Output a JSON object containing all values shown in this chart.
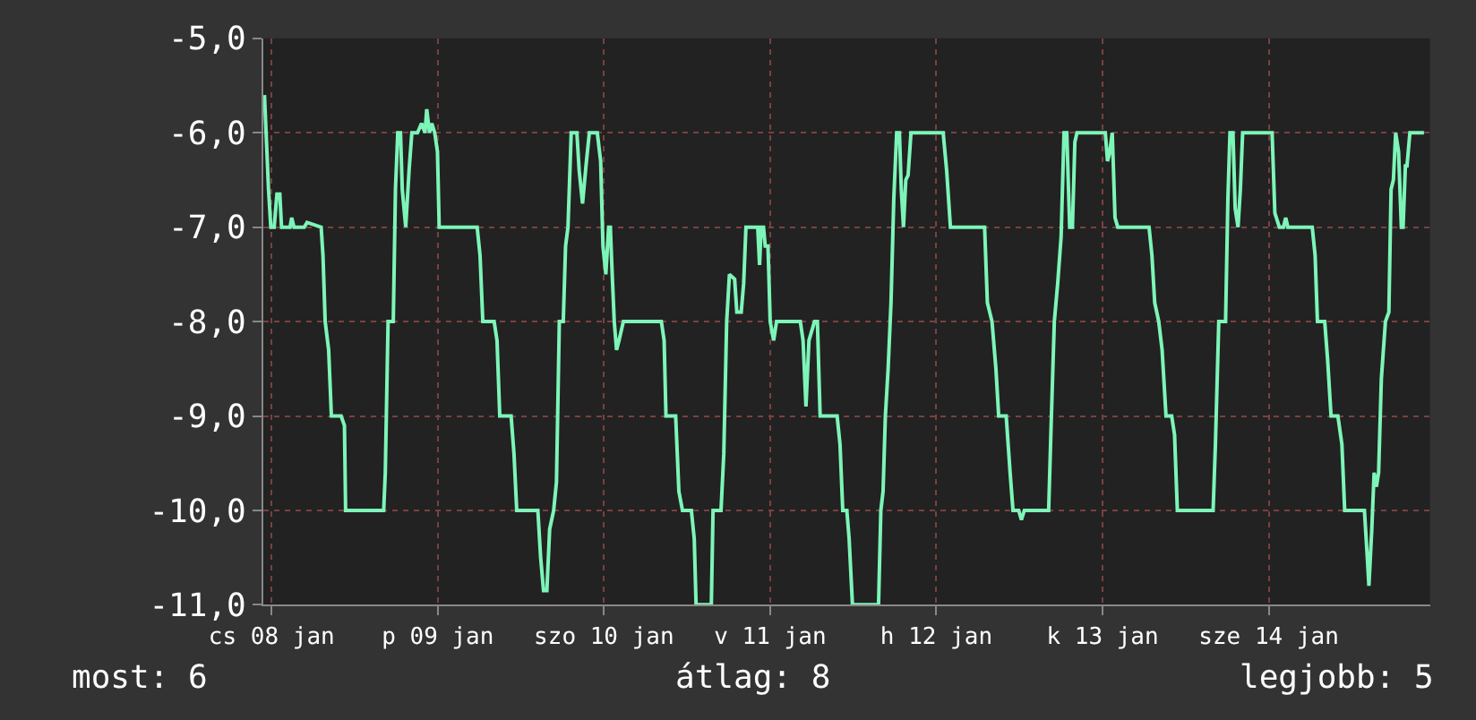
{
  "chart_data": {
    "type": "line",
    "x": [
      "--01-08T10:58",
      "--01-08T11:12",
      "--01-08T11:33",
      "--01-08T11:53",
      "--01-08T12:22",
      "--01-08T12:46",
      "--01-08T13:11",
      "--01-08T13:26",
      "--01-08T14:40",
      "--01-08T14:54",
      "--01-08T15:14",
      "--01-08T16:42",
      "--01-08T17:07",
      "--01-08T19:09",
      "--01-08T19:25",
      "--01-08T19:44",
      "--01-08T20:14",
      "--01-08T20:38",
      "--01-08T22:02",
      "--01-08T22:31",
      "--01-08T22:41",
      "--01-09T04:11",
      "--01-09T04:25",
      "--01-09T04:49",
      "--01-09T05:34",
      "--01-09T05:53",
      "--01-09T06:13",
      "--01-09T06:37",
      "--01-09T06:52",
      "--01-09T07:22",
      "--01-09T07:51",
      "--01-09T08:15",
      "--01-09T09:04",
      "--01-09T09:39",
      "--01-09T10:09",
      "--01-09T10:24",
      "--01-09T10:48",
      "--01-09T11:08",
      "--01-09T11:33",
      "--01-09T11:57",
      "--01-09T12:12",
      "--01-09T17:41",
      "--01-09T18:06",
      "--01-09T18:30",
      "--01-09T20:08",
      "--01-09T20:33",
      "--01-09T20:57",
      "--01-09T22:35",
      "--01-09T23:00",
      "--01-09T23:24",
      "--01-10T02:27",
      "--01-10T02:51",
      "--01-10T03:16",
      "--01-10T03:45",
      "--01-10T04:09",
      "--01-10T04:44",
      "--01-10T05:08",
      "--01-10T05:33",
      "--01-10T06:07",
      "--01-10T06:27",
      "--01-10T06:48",
      "--01-10T07:16",
      "--01-10T08:05",
      "--01-10T08:25",
      "--01-10T08:54",
      "--01-10T09:24",
      "--01-10T09:53",
      "--01-10T11:02",
      "--01-10T11:31",
      "--01-10T11:51",
      "--01-10T12:16",
      "--01-10T12:40",
      "--01-10T12:55",
      "--01-10T13:11",
      "--01-10T13:29",
      "--01-10T13:49",
      "--01-10T14:10",
      "--01-10T14:48",
      "--01-10T20:17",
      "--01-10T20:41",
      "--01-10T20:57",
      "--01-10T22:21",
      "--01-10T22:49",
      "--01-10T23:20",
      "--01-11T00:37",
      "--01-11T01:02",
      "--01-11T01:18",
      "--01-11T03:30",
      "--01-11T03:45",
      "--01-11T04:54",
      "--01-11T05:18",
      "--01-11T05:43",
      "--01-11T06:07",
      "--01-11T06:52",
      "--01-11T07:11",
      "--01-11T07:49",
      "--01-11T08:10",
      "--01-11T08:30",
      "--01-11T10:12",
      "--01-11T10:28",
      "--01-11T10:42",
      "--01-11T11:02",
      "--01-11T11:17",
      "--01-11T11:41",
      "--01-11T12:00",
      "--01-11T12:30",
      "--01-11T12:55",
      "--01-11T16:21",
      "--01-11T16:45",
      "--01-11T17:10",
      "--01-11T17:36",
      "--01-11T18:24",
      "--01-11T18:49",
      "--01-11T19:13",
      "--01-11T21:40",
      "--01-11T22:05",
      "--01-11T22:29",
      "--01-11T23:04",
      "--01-11T23:24",
      "--01-11T23:53",
      "--01-12T03:39",
      "--01-12T03:59",
      "--01-12T04:18",
      "--01-12T04:38",
      "--01-12T05:02",
      "--01-12T05:27",
      "--01-12T05:51",
      "--01-12T06:16",
      "--01-12T06:40",
      "--01-12T06:56",
      "--01-12T07:15",
      "--01-12T07:35",
      "--01-12T07:55",
      "--01-12T08:20",
      "--01-12T12:59",
      "--01-12T13:29",
      "--01-12T14:02",
      "--01-12T18:58",
      "--01-12T19:22",
      "--01-12T20:02",
      "--01-12T20:36",
      "--01-12T21:00",
      "--01-12T22:05",
      "--01-12T22:39",
      "--01-12T23:04",
      "--01-12T23:53",
      "--01-13T00:17",
      "--01-13T00:42",
      "--01-13T04:13",
      "--01-13T04:32",
      "--01-13T05:02",
      "--01-13T05:31",
      "--01-13T06:01",
      "--01-13T06:26",
      "--01-13T06:50",
      "--01-13T07:15",
      "--01-13T07:39",
      "--01-13T08:00",
      "--01-13T08:18",
      "--01-13T12:24",
      "--01-13T12:43",
      "--01-13T13:03",
      "--01-13T13:24",
      "--01-13T13:48",
      "--01-13T14:12",
      "--01-13T18:43",
      "--01-13T19:08",
      "--01-13T19:32",
      "--01-13T20:07",
      "--01-13T20:36",
      "--01-13T21:10",
      "--01-13T21:59",
      "--01-13T22:24",
      "--01-13T22:48",
      "--01-14T03:58",
      "--01-14T04:18",
      "--01-14T04:47",
      "--01-14T05:46",
      "--01-14T06:06",
      "--01-14T06:24",
      "--01-14T06:50",
      "--01-14T07:09",
      "--01-14T07:34",
      "--01-14T07:54",
      "--01-14T08:14",
      "--01-14T12:29",
      "--01-14T12:53",
      "--01-14T13:32",
      "--01-14T14:07",
      "--01-14T14:27",
      "--01-14T14:46",
      "--01-14T18:17",
      "--01-14T18:42",
      "--01-14T19:02",
      "--01-14T20:05",
      "--01-14T20:30",
      "--01-14T21:00",
      "--01-14T21:59",
      "--01-14T22:34",
      "--01-14T22:58",
      "--01-15T01:49",
      "--01-15T02:14",
      "--01-15T02:28",
      "--01-15T02:53",
      "--01-15T03:13",
      "--01-15T03:33",
      "--01-15T03:52",
      "--01-15T04:16",
      "--01-15T04:51",
      "--01-15T05:21",
      "--01-15T05:40",
      "--01-15T06:00",
      "--01-15T06:20",
      "--01-15T06:45",
      "--01-15T07:09",
      "--01-15T07:24",
      "--01-15T07:44",
      "--01-15T07:58",
      "--01-15T08:23",
      "--01-15T10:25"
    ],
    "series": [
      {
        "color": "#7df5b8",
        "values": [
          -5.6,
          -6.0,
          -6.6,
          -7.0,
          -7.0,
          -6.65,
          -6.65,
          -7.0,
          -7.0,
          -6.9,
          -7.0,
          -7.0,
          -6.95,
          -7.0,
          -7.3,
          -8.0,
          -8.3,
          -9.0,
          -9.0,
          -9.1,
          -10.0,
          -10.0,
          -9.6,
          -8.0,
          -8.0,
          -6.6,
          -6.0,
          -6.0,
          -6.6,
          -7.0,
          -6.4,
          -6.0,
          -6.0,
          -5.9,
          -6.0,
          -5.75,
          -6.0,
          -5.9,
          -6.0,
          -6.2,
          -7.0,
          -7.0,
          -7.3,
          -8.0,
          -8.0,
          -8.2,
          -9.0,
          -9.0,
          -9.4,
          -10.0,
          -10.0,
          -10.5,
          -10.85,
          -10.85,
          -10.2,
          -10.0,
          -9.7,
          -8.0,
          -8.0,
          -7.2,
          -7.0,
          -6.0,
          -6.0,
          -6.4,
          -6.75,
          -6.35,
          -6.0,
          -6.0,
          -6.3,
          -7.2,
          -7.5,
          -7.0,
          -7.0,
          -7.5,
          -8.0,
          -8.3,
          -8.2,
          -8.0,
          -8.0,
          -8.2,
          -9.0,
          -9.0,
          -9.8,
          -10.0,
          -10.0,
          -10.3,
          -11.0,
          -11.0,
          -10.0,
          -10.0,
          -9.4,
          -8.0,
          -7.5,
          -7.55,
          -7.9,
          -7.9,
          -7.6,
          -7.0,
          -7.0,
          -7.4,
          -7.0,
          -7.0,
          -7.2,
          -7.2,
          -8.0,
          -8.2,
          -8.0,
          -8.0,
          -8.2,
          -8.9,
          -8.2,
          -8.0,
          -8.0,
          -9.0,
          -9.0,
          -9.3,
          -10.0,
          -10.0,
          -10.3,
          -11.0,
          -11.0,
          -10.0,
          -9.8,
          -9.0,
          -8.5,
          -7.8,
          -6.7,
          -6.0,
          -6.0,
          -6.6,
          -7.0,
          -6.5,
          -6.45,
          -6.0,
          -6.0,
          -6.4,
          -7.0,
          -7.0,
          -7.8,
          -8.0,
          -8.5,
          -9.0,
          -9.0,
          -9.6,
          -10.0,
          -10.0,
          -10.1,
          -10.0,
          -10.0,
          -9.2,
          -8.0,
          -7.6,
          -7.1,
          -6.0,
          -6.0,
          -7.0,
          -7.0,
          -6.1,
          -6.0,
          -6.0,
          -6.3,
          -6.2,
          -6.0,
          -6.9,
          -7.0,
          -7.0,
          -7.3,
          -7.8,
          -8.0,
          -8.3,
          -9.0,
          -9.0,
          -9.2,
          -10.0,
          -10.0,
          -9.3,
          -8.0,
          -8.0,
          -6.7,
          -6.0,
          -6.0,
          -6.8,
          -7.0,
          -6.6,
          -6.0,
          -6.0,
          -6.85,
          -7.0,
          -7.0,
          -6.9,
          -7.0,
          -7.0,
          -7.3,
          -8.0,
          -8.0,
          -8.4,
          -9.0,
          -9.0,
          -9.3,
          -10.0,
          -10.0,
          -10.5,
          -10.8,
          -10.2,
          -9.6,
          -9.75,
          -9.6,
          -8.6,
          -8.0,
          -7.9,
          -6.6,
          -6.5,
          -6.0,
          -6.2,
          -7.0,
          -7.0,
          -6.35,
          -6.35,
          -6.0,
          -6.0
        ]
      }
    ],
    "xlim": [
      "--01-08T10:48",
      "--01-15T11:17"
    ],
    "xticks": [
      {
        "value": "--01-08T12:00",
        "label": "cs 08 jan"
      },
      {
        "value": "--01-09T12:00",
        "label": "p 09 jan"
      },
      {
        "value": "--01-10T12:00",
        "label": "szo 10 jan"
      },
      {
        "value": "--01-11T12:00",
        "label": "v 11 jan"
      },
      {
        "value": "--01-12T12:00",
        "label": "h 12 jan"
      },
      {
        "value": "--01-13T12:00",
        "label": "k 13 jan"
      },
      {
        "value": "--01-14T12:00",
        "label": "sze 14 jan"
      }
    ],
    "ylim": [
      -11,
      -5
    ],
    "yticks": [
      {
        "value": -5,
        "label": "-5,0"
      },
      {
        "value": -6,
        "label": "-6,0"
      },
      {
        "value": -7,
        "label": "-7,0"
      },
      {
        "value": -8,
        "label": "-8,0"
      },
      {
        "value": -9,
        "label": "-9,0"
      },
      {
        "value": -10,
        "label": "-10,0"
      },
      {
        "value": -11,
        "label": "-11,0"
      }
    ],
    "grid": true,
    "annotations": [
      "most: 6",
      "átlag: 8",
      "legjobb: 5"
    ]
  }
}
